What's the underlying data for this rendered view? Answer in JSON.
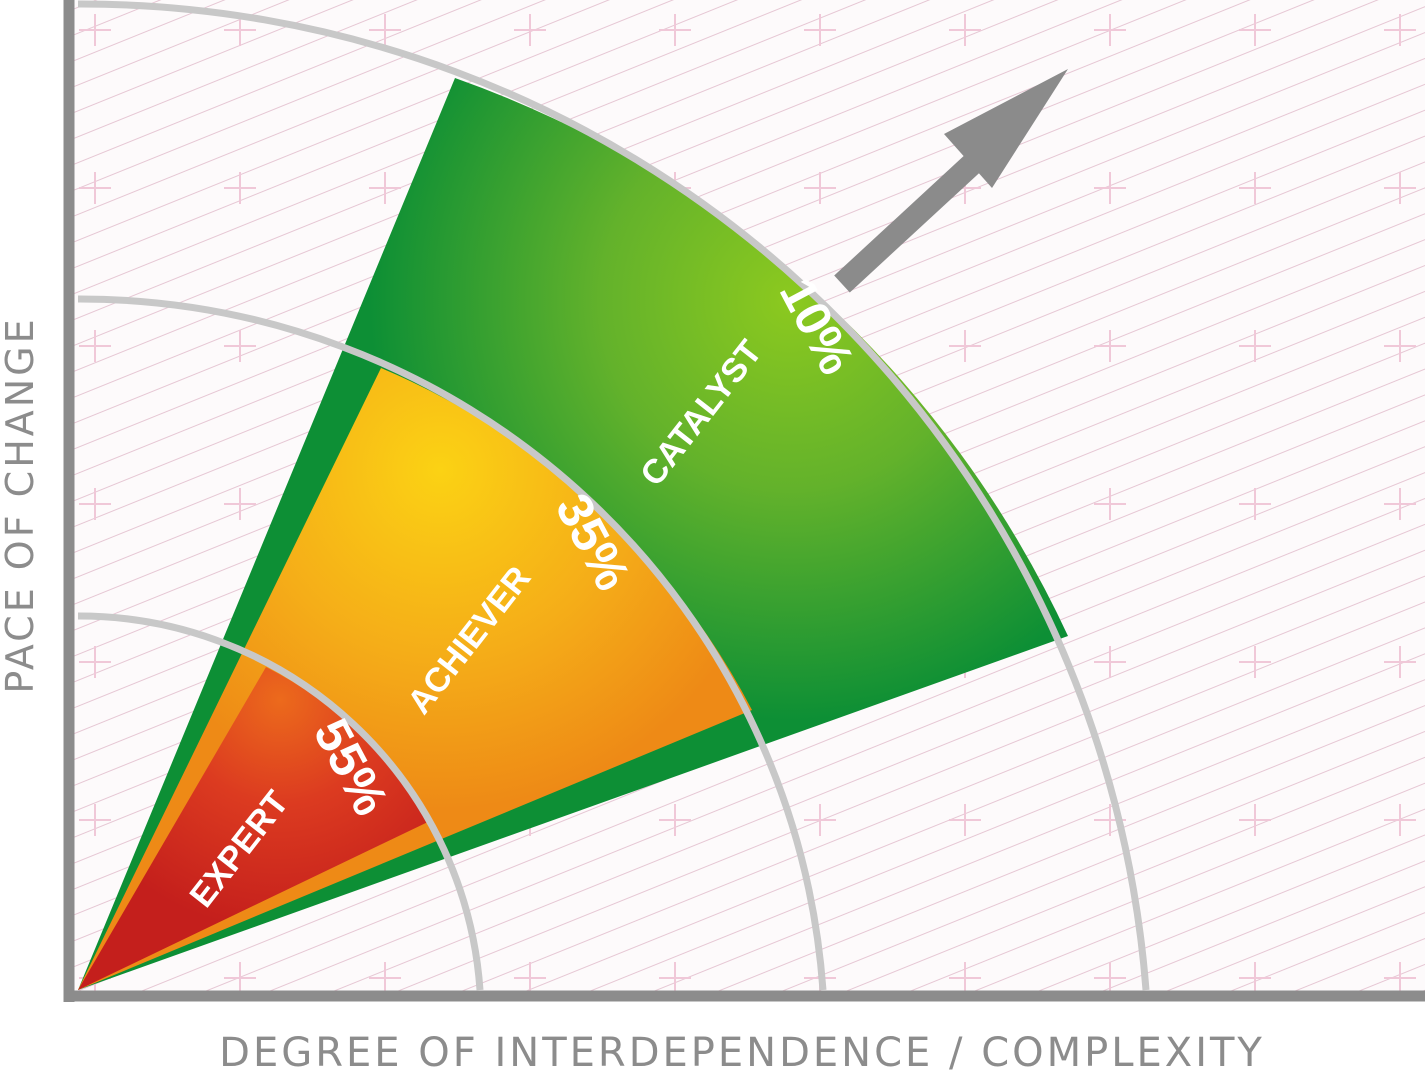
{
  "axes": {
    "x_label": "DEGREE OF INTERDEPENDENCE / COMPLEXITY",
    "y_label": "PACE OF CHANGE"
  },
  "segments": [
    {
      "id": "expert",
      "name": "EXPERT",
      "percent": "55%",
      "share": 55,
      "color": "#d42b1e"
    },
    {
      "id": "achiever",
      "name": "ACHIEVER",
      "percent": "35%",
      "share": 35,
      "color": "#f5a11a"
    },
    {
      "id": "catalyst",
      "name": "CATALYST",
      "percent": "10%",
      "share": 10,
      "color": "#129b36"
    }
  ],
  "colors": {
    "axis": "#8c8c8c",
    "arc": "#c7c7c7",
    "arrow": "#8a8a8a",
    "hatch": "#e8c9d6",
    "cross": "#f0c8d8"
  }
}
